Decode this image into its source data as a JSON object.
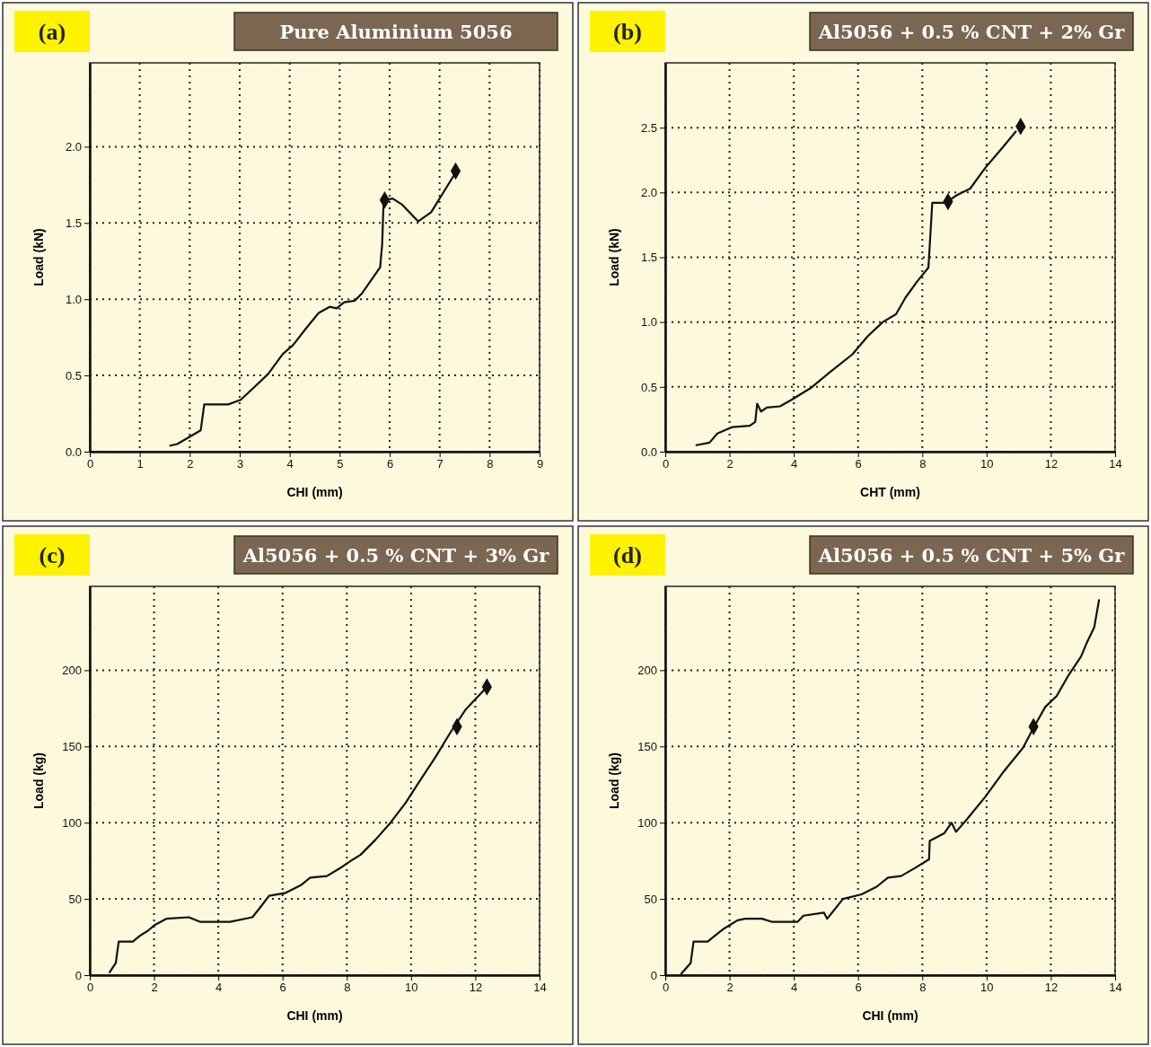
{
  "chart_data": [
    {
      "type": "line",
      "title": "Pure Aluminium 5056",
      "annotations": [
        "(a)"
      ],
      "xlabel": "CHI (mm)",
      "ylabel": "Load (kN)",
      "xlim": [
        0,
        9
      ],
      "ylim": [
        0,
        2.55
      ],
      "xticks": [
        0,
        1,
        2,
        3,
        4,
        5,
        6,
        7,
        8,
        9
      ],
      "yticks": [
        {
          "value": 0,
          "label": "0.0"
        },
        {
          "value": 0.5,
          "label": "0.5"
        },
        {
          "value": 1,
          "label": "1.0"
        },
        {
          "value": 1.5,
          "label": "1.5"
        },
        {
          "value": 2,
          "label": "2.0"
        }
      ],
      "grid": true,
      "line_style": "solid",
      "series": [
        {
          "color": "#111111",
          "marker": "none",
          "x": [
            1.61,
            1.75,
            2.22,
            2.29,
            2.77,
            3.02,
            3.28,
            3.57,
            3.86,
            4.07,
            4.33,
            4.58,
            4.8,
            4.94,
            5.09,
            5.3,
            5.45,
            5.81,
            5.85,
            5.88,
            6.06,
            6.25,
            6.57,
            6.83,
            7.3
          ],
          "values": [
            0.04,
            0.05,
            0.14,
            0.31,
            0.31,
            0.34,
            0.42,
            0.51,
            0.64,
            0.7,
            0.81,
            0.91,
            0.95,
            0.94,
            0.98,
            0.99,
            1.04,
            1.21,
            1.36,
            1.65,
            1.66,
            1.62,
            1.51,
            1.57,
            1.82
          ]
        },
        {
          "type": "scatter",
          "color": "#111111",
          "marker": "diamond",
          "x": [
            5.9,
            7.32
          ],
          "values": [
            1.65,
            1.84
          ]
        }
      ]
    },
    {
      "type": "line",
      "title": "Al5056 + 0.5 % CNT + 2% Gr",
      "annotations": [
        "(b)"
      ],
      "xlabel": "CHT (mm)",
      "ylabel": "Load (kN)",
      "xlim": [
        0,
        14
      ],
      "ylim": [
        0,
        3.0
      ],
      "xticks": [
        0,
        2,
        4,
        6,
        8,
        10,
        12,
        14
      ],
      "yticks": [
        {
          "value": 0,
          "label": "0.0"
        },
        {
          "value": 0.5,
          "label": "0.5"
        },
        {
          "value": 1,
          "label": "1.0"
        },
        {
          "value": 1.5,
          "label": "1.5"
        },
        {
          "value": 2,
          "label": "2.0"
        },
        {
          "value": 2.5,
          "label": "2.5"
        }
      ],
      "grid": true,
      "line_style": "solid",
      "series": [
        {
          "color": "#111111",
          "marker": "none",
          "x": [
            0.97,
            1.38,
            1.62,
            2.09,
            2.63,
            2.8,
            2.86,
            2.98,
            3.16,
            3.57,
            3.93,
            4.52,
            5.11,
            5.82,
            6.3,
            6.77,
            7.18,
            7.48,
            7.83,
            8.19,
            8.31,
            8.72,
            9.08,
            9.49,
            9.96,
            10.44,
            10.91
          ],
          "values": [
            0.05,
            0.07,
            0.14,
            0.19,
            0.2,
            0.23,
            0.37,
            0.31,
            0.34,
            0.35,
            0.4,
            0.49,
            0.61,
            0.75,
            0.89,
            1.0,
            1.06,
            1.19,
            1.31,
            1.42,
            1.92,
            1.92,
            1.98,
            2.03,
            2.19,
            2.33,
            2.47
          ]
        },
        {
          "type": "scatter",
          "color": "#111111",
          "marker": "diamond",
          "x": [
            8.8,
            11.06
          ],
          "values": [
            1.93,
            2.51
          ]
        }
      ]
    },
    {
      "type": "line",
      "title": "Al5056 + 0.5 % CNT + 3% Gr",
      "annotations": [
        "(c)"
      ],
      "xlabel": "CHI (mm)",
      "ylabel": "Load (kg)",
      "xlim": [
        0,
        14
      ],
      "ylim": [
        0,
        255
      ],
      "xticks": [
        0,
        2,
        4,
        6,
        8,
        10,
        12,
        14
      ],
      "yticks": [
        0,
        50,
        100,
        150,
        200
      ],
      "grid": true,
      "line_style": "solid",
      "series": [
        {
          "color": "#111111",
          "marker": "none",
          "x": [
            0.62,
            0.81,
            0.9,
            1.34,
            1.57,
            1.8,
            2.03,
            2.38,
            3.08,
            3.43,
            4.36,
            5.06,
            5.29,
            5.58,
            6.1,
            6.57,
            6.86,
            7.38,
            7.85,
            8.2,
            8.43,
            8.9,
            9.36,
            9.83,
            10.29,
            10.76,
            11.22,
            11.69,
            12.27
          ],
          "values": [
            2,
            8,
            22,
            22,
            26,
            29,
            33,
            37,
            38,
            35,
            35,
            38,
            44,
            52,
            54,
            59,
            64,
            65,
            71,
            76,
            79,
            89,
            100,
            113,
            128,
            143,
            159,
            174,
            187
          ]
        },
        {
          "type": "scatter",
          "color": "#111111",
          "marker": "diamond",
          "x": [
            11.43,
            12.36
          ],
          "values": [
            163,
            189
          ]
        }
      ]
    },
    {
      "type": "line",
      "title": "Al5056 + 0.5 % CNT + 5% Gr",
      "annotations": [
        "(d)"
      ],
      "xlabel": "CHI (mm)",
      "ylabel": "Load (kg)",
      "xlim": [
        0,
        14
      ],
      "ylim": [
        0,
        255
      ],
      "xticks": [
        0,
        2,
        4,
        6,
        8,
        10,
        12,
        14
      ],
      "yticks": [
        0,
        50,
        100,
        150,
        200
      ],
      "grid": true,
      "line_style": "solid",
      "series": [
        {
          "color": "#111111",
          "marker": "none",
          "x": [
            0.5,
            0.79,
            0.88,
            1.32,
            1.55,
            1.79,
            2.25,
            2.49,
            3.01,
            3.31,
            4.12,
            4.3,
            4.94,
            5.04,
            5.53,
            6.11,
            6.58,
            6.93,
            7.34,
            7.75,
            8.21,
            8.23,
            8.68,
            8.91,
            9.05,
            9.38,
            9.96,
            10.55,
            11.13,
            11.48,
            11.83,
            12.18,
            12.53,
            12.94,
            13.12,
            13.35,
            13.5
          ],
          "values": [
            1,
            8,
            22,
            22,
            26,
            30,
            36,
            37,
            37,
            35,
            35,
            39,
            41,
            37,
            50,
            53,
            58,
            64,
            65,
            70,
            76,
            88,
            93,
            100,
            94,
            102,
            117,
            134,
            149,
            163,
            176,
            183,
            196,
            209,
            218,
            228,
            246
          ]
        },
        {
          "type": "scatter",
          "color": "#111111",
          "marker": "diamond",
          "x": [
            11.46
          ],
          "values": [
            163
          ]
        }
      ]
    }
  ]
}
